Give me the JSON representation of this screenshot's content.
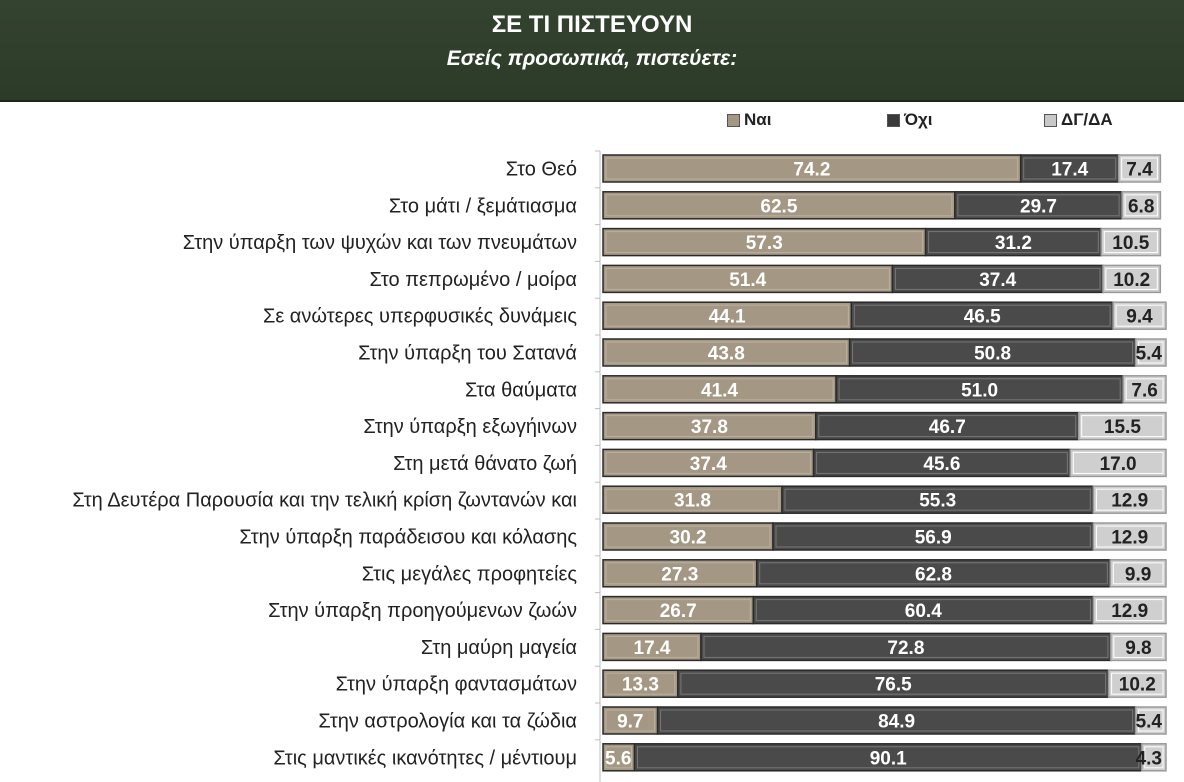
{
  "header": {
    "title": "ΣΕ ΤΙ ΠΙΣΤΕΥΟΥΝ",
    "subtitle": "Εσείς προσωπικά, πιστεύετε:"
  },
  "colors": {
    "header_bg": "#2f3d2b",
    "yes": "#a49783",
    "no": "#4a4a4a",
    "dk": "#cfcfcf"
  },
  "chart_data": {
    "type": "bar",
    "stacked": true,
    "orientation": "horizontal",
    "title": "ΣΕ ΤΙ ΠΙΣΤΕΥΟΥΝ",
    "subtitle": "Εσείς προσωπικά, πιστεύετε:",
    "legend_position": "top",
    "xlim": [
      0,
      100
    ],
    "categories": [
      "Στο Θεό",
      "Στο μάτι / ξεμάτιασμα",
      "Στην ύπαρξη των ψυχών και των πνευμάτων",
      "Στο πεπρωμένο / μοίρα",
      "Σε ανώτερες υπερφυσικές δυνάμεις",
      "Στην ύπαρξη του Σατανά",
      "Στα θαύματα",
      "Στην ύπαρξη εξωγήινων",
      "Στη μετά θάνατο ζωή",
      "Στη Δευτέρα Παρουσία και την τελική κρίση ζωντανών και",
      "Στην ύπαρξη παράδεισου και κόλασης",
      "Στις μεγάλες προφητείες",
      "Στην ύπαρξη προηγούμενων ζωών",
      "Στη μαύρη μαγεία",
      "Στην ύπαρξη φαντασμάτων",
      "Στην αστρολογία και τα ζώδια",
      "Στις μαντικές ικανότητες / μέντιουμ"
    ],
    "series": [
      {
        "name": "Ναι",
        "values": [
          74.2,
          62.5,
          57.3,
          51.4,
          44.1,
          43.8,
          41.4,
          37.8,
          37.4,
          31.8,
          30.2,
          27.3,
          26.7,
          17.4,
          13.3,
          9.7,
          5.6
        ]
      },
      {
        "name": "Όχι",
        "values": [
          17.4,
          29.7,
          31.2,
          37.4,
          46.5,
          50.8,
          51.0,
          46.7,
          45.6,
          55.3,
          56.9,
          62.8,
          60.4,
          72.8,
          76.5,
          84.9,
          90.1
        ]
      },
      {
        "name": "ΔΓ/ΔΑ",
        "values": [
          7.4,
          6.8,
          10.5,
          10.2,
          9.4,
          5.4,
          7.6,
          15.5,
          17.0,
          12.9,
          12.9,
          9.9,
          12.9,
          9.8,
          10.2,
          5.4,
          4.3
        ]
      }
    ]
  }
}
